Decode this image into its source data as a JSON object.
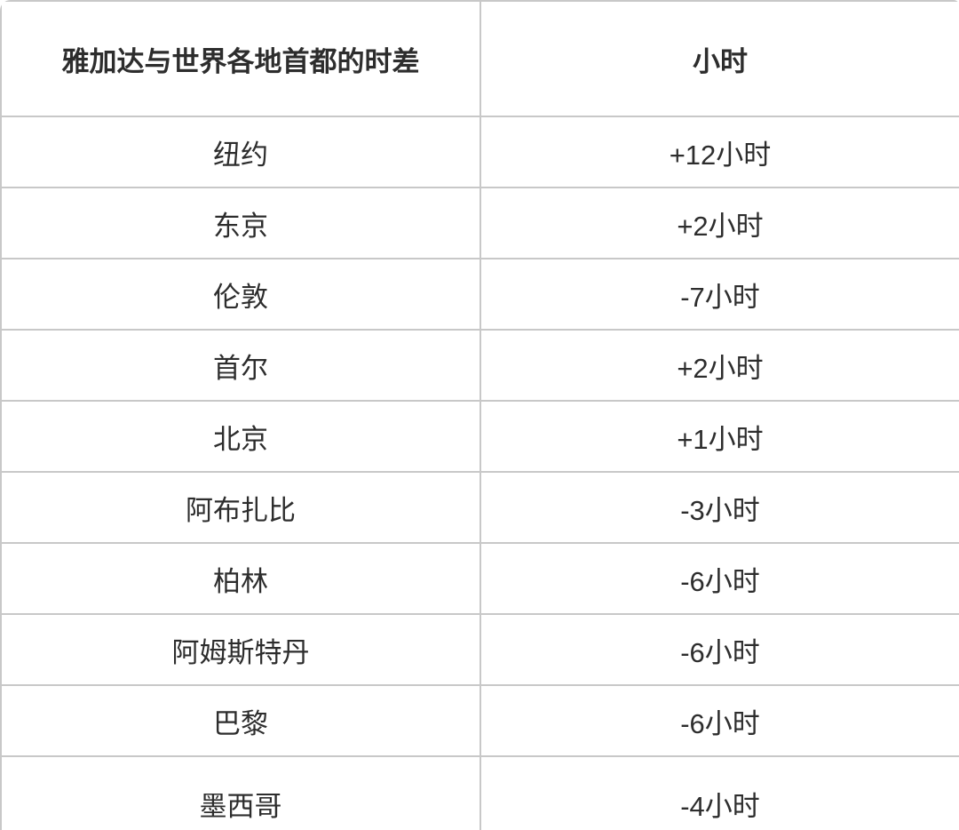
{
  "chart_data": {
    "type": "table",
    "title": "雅加达与世界各地首都的时差",
    "columns": [
      "雅加达与世界各地首都的时差",
      "小时"
    ],
    "rows": [
      [
        "纽约",
        "+12小时"
      ],
      [
        "东京",
        "+2小时"
      ],
      [
        "伦敦",
        "-7小时"
      ],
      [
        "首尔",
        "+2小时"
      ],
      [
        "北京",
        "+1小时"
      ],
      [
        "阿布扎比",
        "-3小时"
      ],
      [
        "柏林",
        "-6小时"
      ],
      [
        "阿姆斯特丹",
        "-6小时"
      ],
      [
        "巴黎",
        "-6小时"
      ],
      [
        "墨西哥",
        "-4小时"
      ]
    ],
    "layout": {
      "header_bold": true,
      "text_align": "center",
      "grid": "full-borders"
    }
  },
  "table": {
    "header": {
      "col1": "雅加达与世界各地首都的时差",
      "col2": "小时"
    },
    "rows": [
      {
        "city": "纽约",
        "offset": "+12小时"
      },
      {
        "city": "东京",
        "offset": "+2小时"
      },
      {
        "city": "伦敦",
        "offset": "-7小时"
      },
      {
        "city": "首尔",
        "offset": "+2小时"
      },
      {
        "city": "北京",
        "offset": "+1小时"
      },
      {
        "city": "阿布扎比",
        "offset": "-3小时"
      },
      {
        "city": "柏林",
        "offset": "-6小时"
      },
      {
        "city": "阿姆斯特丹",
        "offset": "-6小时"
      },
      {
        "city": "巴黎",
        "offset": "-6小时"
      },
      {
        "city": "墨西哥",
        "offset": "-4小时"
      }
    ]
  },
  "colors": {
    "border": "#c8c8c8",
    "text": "#2d2d2d",
    "background": "#ffffff"
  }
}
